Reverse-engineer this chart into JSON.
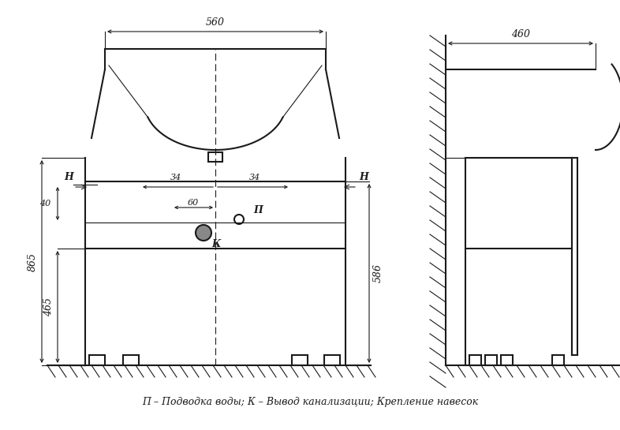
{
  "bg_color": "#ffffff",
  "line_color": "#1a1a1a",
  "dim_color": "#1a1a1a",
  "hatch_color": "#1a1a1a",
  "caption": "П – Подводка воды; К – Вывод канализации; Крепление навесок",
  "dim_560": "560",
  "dim_460": "460",
  "dim_865": "865",
  "dim_465": "465",
  "dim_586": "586",
  "dim_40": "40",
  "dim_34L": "34",
  "dim_34R": "34",
  "dim_60": "60",
  "label_H_left": "H",
  "label_H_right": "H",
  "label_P": "П",
  "label_K": "К"
}
